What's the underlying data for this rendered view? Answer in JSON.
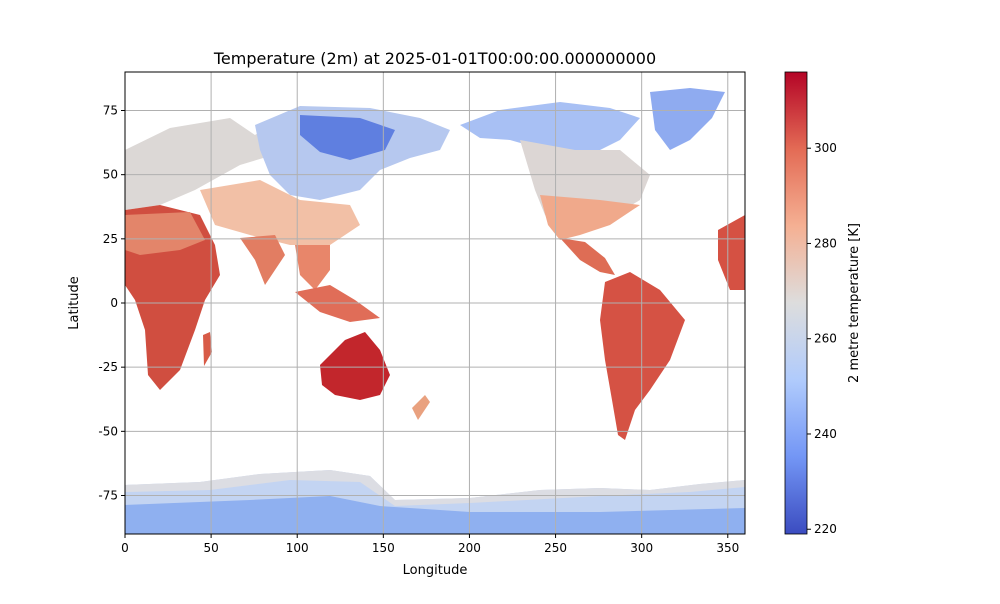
{
  "chart_data": {
    "type": "heatmap",
    "title": "Temperature (2m) at 2025-01-01T00:00:00.000000000",
    "xlabel": "Longitude",
    "ylabel": "Latitude",
    "xlim": [
      0,
      360
    ],
    "ylim": [
      -90,
      90
    ],
    "xticks": [
      0,
      50,
      100,
      150,
      200,
      250,
      300,
      350
    ],
    "yticks": [
      -75,
      -50,
      -25,
      0,
      25,
      50,
      75
    ],
    "grid": true,
    "colorbar": {
      "label": "2 metre temperature [K]",
      "vmin": 219,
      "vmax": 316,
      "ticks": [
        220,
        240,
        260,
        280,
        300
      ],
      "colormap": "coolwarm",
      "colors": [
        "#3b4cc0",
        "#7396f5",
        "#b0cbfc",
        "#dddddd",
        "#f5b093",
        "#e36b55",
        "#b40426"
      ]
    },
    "regions": [
      {
        "name": "Africa",
        "approx_temperature_K": 300
      },
      {
        "name": "Australia",
        "approx_temperature_K": 310
      },
      {
        "name": "South America",
        "approx_temperature_K": 298
      },
      {
        "name": "Siberia",
        "approx_temperature_K": 230
      },
      {
        "name": "Greenland",
        "approx_temperature_K": 245
      },
      {
        "name": "Antarctica",
        "approx_temperature_K": 255
      },
      {
        "name": "North America",
        "approx_temperature_K": 265
      },
      {
        "name": "Europe",
        "approx_temperature_K": 275
      },
      {
        "name": "South Asia",
        "approx_temperature_K": 295
      }
    ]
  }
}
